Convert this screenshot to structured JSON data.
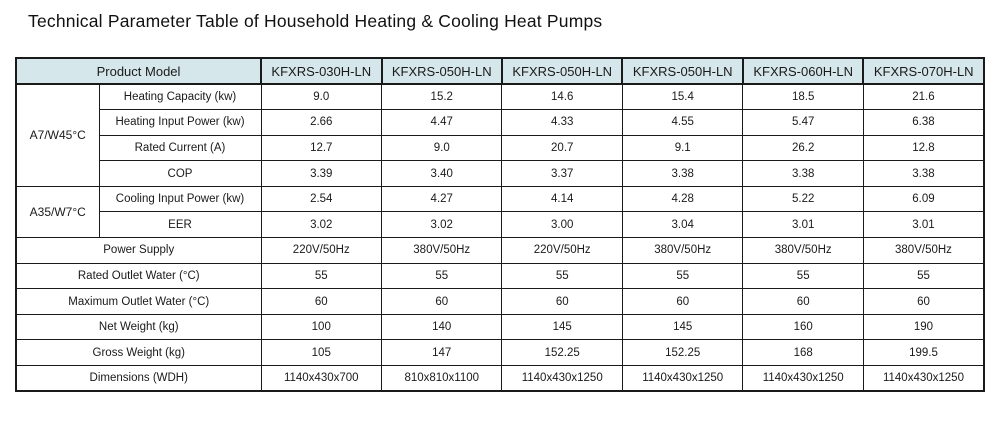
{
  "page_title": "Technical Parameter Table of Household Heating & Cooling Heat Pumps",
  "colors": {
    "header_bg": "#d6e7eb",
    "border": "#1a1a1a",
    "text": "#1a1a1a",
    "page_bg": "#ffffff"
  },
  "table": {
    "header": {
      "product_model": "Product Model",
      "models": [
        "KFXRS-030H-LN",
        "KFXRS-050H-LN",
        "KFXRS-050H-LN",
        "KFXRS-050H-LN",
        "KFXRS-060H-LN",
        "KFXRS-070H-LN"
      ]
    },
    "condition_groups": [
      {
        "label": "A7/W45°C"
      },
      {
        "label": "A35/W7°C"
      }
    ],
    "rows": [
      {
        "label": "Heating Capacity (kw)",
        "values": [
          "9.0",
          "15.2",
          "14.6",
          "15.4",
          "18.5",
          "21.6"
        ]
      },
      {
        "label": "Heating Input Power (kw)",
        "values": [
          "2.66",
          "4.47",
          "4.33",
          "4.55",
          "5.47",
          "6.38"
        ]
      },
      {
        "label": "Rated Current (A)",
        "values": [
          "12.7",
          "9.0",
          "20.7",
          "9.1",
          "26.2",
          "12.8"
        ]
      },
      {
        "label": "COP",
        "values": [
          "3.39",
          "3.40",
          "3.37",
          "3.38",
          "3.38",
          "3.38"
        ]
      },
      {
        "label": "Cooling Input Power (kw)",
        "values": [
          "2.54",
          "4.27",
          "4.14",
          "4.28",
          "5.22",
          "6.09"
        ]
      },
      {
        "label": "EER",
        "values": [
          "3.02",
          "3.02",
          "3.00",
          "3.04",
          "3.01",
          "3.01"
        ]
      },
      {
        "label": "Power Supply",
        "values": [
          "220V/50Hz",
          "380V/50Hz",
          "220V/50Hz",
          "380V/50Hz",
          "380V/50Hz",
          "380V/50Hz"
        ]
      },
      {
        "label": "Rated Outlet Water  (°C)",
        "values": [
          "55",
          "55",
          "55",
          "55",
          "55",
          "55"
        ]
      },
      {
        "label": "Maximum Outlet Water (°C)",
        "values": [
          "60",
          "60",
          "60",
          "60",
          "60",
          "60"
        ]
      },
      {
        "label": "Net Weight (kg)",
        "values": [
          "100",
          "140",
          "145",
          "145",
          "160",
          "190"
        ]
      },
      {
        "label": "Gross Weight (kg)",
        "values": [
          "105",
          "147",
          "152.25",
          "152.25",
          "168",
          "199.5"
        ]
      },
      {
        "label": "Dimensions (WDH)",
        "values": [
          "1140x430x700",
          "810x810x1100",
          "1140x430x1250",
          "1140x430x1250",
          "1140x430x1250",
          "1140x430x1250"
        ]
      }
    ]
  }
}
